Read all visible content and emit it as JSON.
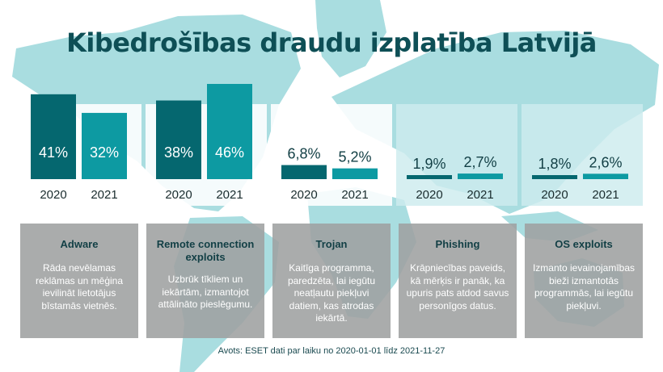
{
  "title": "Kibedrošības draudu izplatība Latvijā",
  "source": "Avots: ESET dati par laiku no 2020-01-01 līdz 2021-11-27",
  "colors": {
    "bar2020": "#05676f",
    "bar2021": "#0d9aa2",
    "title": "#0e4f56",
    "map": "#a9dde0",
    "card": "#9ea0a0"
  },
  "chart_data": {
    "type": "bar",
    "categories": [
      "Adware",
      "Remote connection exploits",
      "Trojan",
      "Phishing",
      "OS exploits"
    ],
    "series": [
      {
        "name": "2020",
        "values": [
          41,
          38,
          6.8,
          1.9,
          1.8
        ]
      },
      {
        "name": "2021",
        "values": [
          32,
          46,
          5.2,
          2.7,
          2.6
        ]
      }
    ],
    "data_labels": {
      "2020": [
        "41%",
        "38%",
        "6,8%",
        "1,9%",
        "1,8%"
      ],
      "2021": [
        "32%",
        "46%",
        "5,2%",
        "2,7%",
        "2,6%"
      ]
    },
    "unit": "%",
    "ylim": [
      0,
      46
    ]
  },
  "cards": [
    {
      "title": "Adware",
      "desc": "Rāda nevēlamas reklāmas un mēģina ievilināt lietotājus bīstamās vietnēs."
    },
    {
      "title": "Remote connection exploits",
      "desc": "Uzbrūk tīkliem un iekārtām, izmantojot attālināto pieslēgumu."
    },
    {
      "title": "Trojan",
      "desc": "Kaitīga programma, paredzēta, lai iegūtu neatļautu piekļuvi datiem, kas atrodas iekārtā."
    },
    {
      "title": "Phishing",
      "desc": "Krāpniecības paveids, kā mērķis ir panāk, ka upuris pats atdod savus personīgos datus."
    },
    {
      "title": "OS exploits",
      "desc": "Izmanto ievainojamības bieži izmantotās programmās, lai iegūtu piekļuvi."
    }
  ]
}
